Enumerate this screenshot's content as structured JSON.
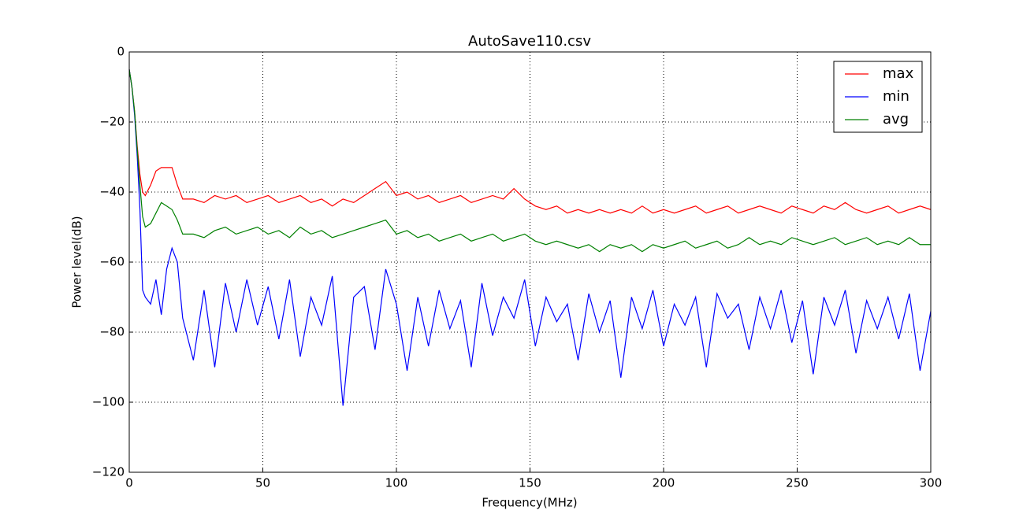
{
  "chart_data": {
    "type": "line",
    "title": "AutoSave110.csv",
    "x_label": "Frequency(MHz)",
    "y_label": "Power level(dB)",
    "x": [
      0,
      1,
      2,
      3,
      4,
      5,
      6,
      8,
      10,
      12,
      14,
      16,
      18,
      20,
      24,
      28,
      32,
      36,
      40,
      44,
      48,
      52,
      56,
      60,
      64,
      68,
      72,
      76,
      80,
      84,
      88,
      92,
      96,
      100,
      104,
      108,
      112,
      116,
      120,
      124,
      128,
      132,
      136,
      140,
      144,
      148,
      152,
      156,
      160,
      164,
      168,
      172,
      176,
      180,
      184,
      188,
      192,
      196,
      200,
      204,
      208,
      212,
      216,
      220,
      224,
      228,
      232,
      236,
      240,
      244,
      248,
      252,
      256,
      260,
      264,
      268,
      272,
      276,
      280,
      284,
      288,
      292,
      296,
      300
    ],
    "series": [
      {
        "name": "max",
        "color": "#ff0000",
        "values": [
          -5,
          -10,
          -17,
          -27,
          -35,
          -40,
          -41,
          -38,
          -34,
          -33,
          -33,
          -33,
          -38,
          -42,
          -42,
          -43,
          -41,
          -42,
          -41,
          -43,
          -42,
          -41,
          -43,
          -42,
          -41,
          -43,
          -42,
          -44,
          -42,
          -43,
          -41,
          -39,
          -37,
          -41,
          -40,
          -42,
          -41,
          -43,
          -42,
          -41,
          -43,
          -42,
          -41,
          -42,
          -39,
          -42,
          -44,
          -45,
          -44,
          -46,
          -45,
          -46,
          -45,
          -46,
          -45,
          -46,
          -44,
          -46,
          -45,
          -46,
          -45,
          -44,
          -46,
          -45,
          -44,
          -46,
          -45,
          -44,
          -45,
          -46,
          -44,
          -45,
          -46,
          -44,
          -45,
          -43,
          -45,
          -46,
          -45,
          -44,
          -46,
          -45,
          -44,
          -45
        ]
      },
      {
        "name": "min",
        "color": "#0000ff",
        "values": [
          -5,
          -10,
          -18,
          -30,
          -45,
          -68,
          -70,
          -72,
          -65,
          -75,
          -62,
          -56,
          -60,
          -76,
          -88,
          -68,
          -90,
          -66,
          -80,
          -65,
          -78,
          -67,
          -82,
          -65,
          -87,
          -70,
          -78,
          -64,
          -101,
          -70,
          -67,
          -85,
          -62,
          -72,
          -91,
          -70,
          -84,
          -68,
          -79,
          -71,
          -90,
          -66,
          -81,
          -70,
          -76,
          -65,
          -84,
          -70,
          -77,
          -72,
          -88,
          -69,
          -80,
          -71,
          -93,
          -70,
          -79,
          -68,
          -84,
          -72,
          -78,
          -70,
          -90,
          -69,
          -76,
          -72,
          -85,
          -70,
          -79,
          -68,
          -83,
          -71,
          -92,
          -70,
          -78,
          -68,
          -86,
          -71,
          -79,
          -70,
          -82,
          -69,
          -91,
          -74
        ]
      },
      {
        "name": "avg",
        "color": "#008000",
        "values": [
          -5,
          -10,
          -17,
          -28,
          -38,
          -47,
          -50,
          -49,
          -46,
          -43,
          -44,
          -45,
          -48,
          -52,
          -52,
          -53,
          -51,
          -50,
          -52,
          -51,
          -50,
          -52,
          -51,
          -53,
          -50,
          -52,
          -51,
          -53,
          -52,
          -51,
          -50,
          -49,
          -48,
          -52,
          -51,
          -53,
          -52,
          -54,
          -53,
          -52,
          -54,
          -53,
          -52,
          -54,
          -53,
          -52,
          -54,
          -55,
          -54,
          -55,
          -56,
          -55,
          -57,
          -55,
          -56,
          -55,
          -57,
          -55,
          -56,
          -55,
          -54,
          -56,
          -55,
          -54,
          -56,
          -55,
          -53,
          -55,
          -54,
          -55,
          -53,
          -54,
          -55,
          -54,
          -53,
          -55,
          -54,
          -53,
          -55,
          -54,
          -55,
          -53,
          -55,
          -55
        ]
      }
    ],
    "xlim": [
      0,
      300
    ],
    "ylim": [
      -120,
      0
    ],
    "xticks": [
      0,
      50,
      100,
      150,
      200,
      250,
      300
    ],
    "yticks": [
      {
        "value": -120,
        "label": "−120"
      },
      {
        "value": -100,
        "label": "−100"
      },
      {
        "value": -80,
        "label": "−80"
      },
      {
        "value": -60,
        "label": "−60"
      },
      {
        "value": -40,
        "label": "−40"
      },
      {
        "value": -20,
        "label": "−20"
      },
      0
    ],
    "grid": true,
    "legend": "upper right"
  }
}
